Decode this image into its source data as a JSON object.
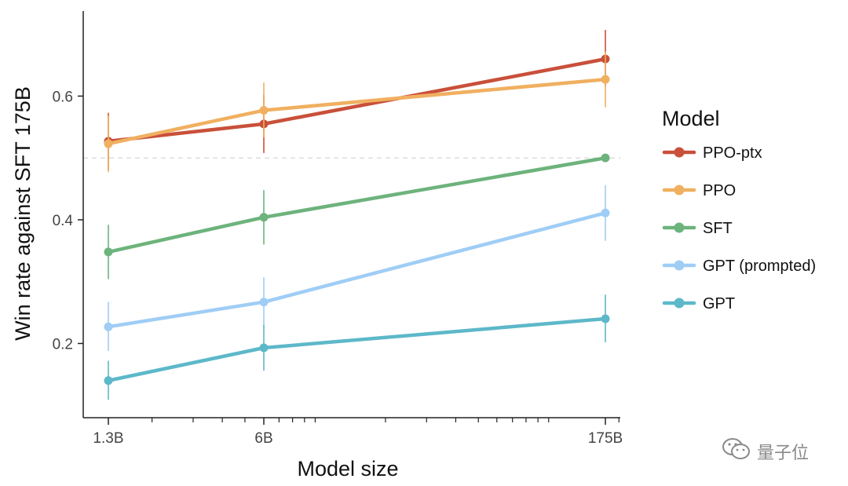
{
  "chart_data": {
    "type": "line",
    "categories": [
      "1.3B",
      "6B",
      "175B"
    ],
    "x_values": [
      1.3,
      6,
      175
    ],
    "x_scale": "log",
    "xlabel": "Model size",
    "ylabel": "Win rate against SFT 175B",
    "ylim": [
      0.08,
      0.73
    ],
    "yticks": [
      0.2,
      0.4,
      0.6
    ],
    "ytick_labels": [
      "0.2",
      "0.4",
      "0.6"
    ],
    "reference_line": 0.5,
    "grid": false,
    "legend_title": "Model",
    "legend_position": "right",
    "series": [
      {
        "name": "PPO-ptx",
        "color": "#c9503a",
        "values": [
          0.527,
          0.555,
          0.66
        ],
        "err_low": [
          0.48,
          0.508,
          0.615
        ],
        "err_high": [
          0.573,
          0.602,
          0.707
        ]
      },
      {
        "name": "PPO",
        "color": "#f0b060",
        "values": [
          0.523,
          0.577,
          0.627
        ],
        "err_low": [
          0.477,
          0.533,
          0.582
        ],
        "err_high": [
          0.568,
          0.622,
          0.672
        ]
      },
      {
        "name": "SFT",
        "color": "#6db37c",
        "values": [
          0.348,
          0.404,
          0.5
        ],
        "err_low": [
          0.304,
          0.36,
          0.5
        ],
        "err_high": [
          0.392,
          0.448,
          0.5
        ]
      },
      {
        "name": "GPT (prompted)",
        "color": "#9fcdf5",
        "values": [
          0.227,
          0.267,
          0.411
        ],
        "err_low": [
          0.188,
          0.226,
          0.366
        ],
        "err_high": [
          0.267,
          0.307,
          0.456
        ]
      },
      {
        "name": "GPT",
        "color": "#5db8c9",
        "values": [
          0.14,
          0.193,
          0.24
        ],
        "err_low": [
          0.109,
          0.156,
          0.202
        ],
        "err_high": [
          0.172,
          0.23,
          0.279
        ]
      }
    ]
  },
  "watermark": {
    "text": "量子位",
    "icon": "wechat-icon"
  }
}
